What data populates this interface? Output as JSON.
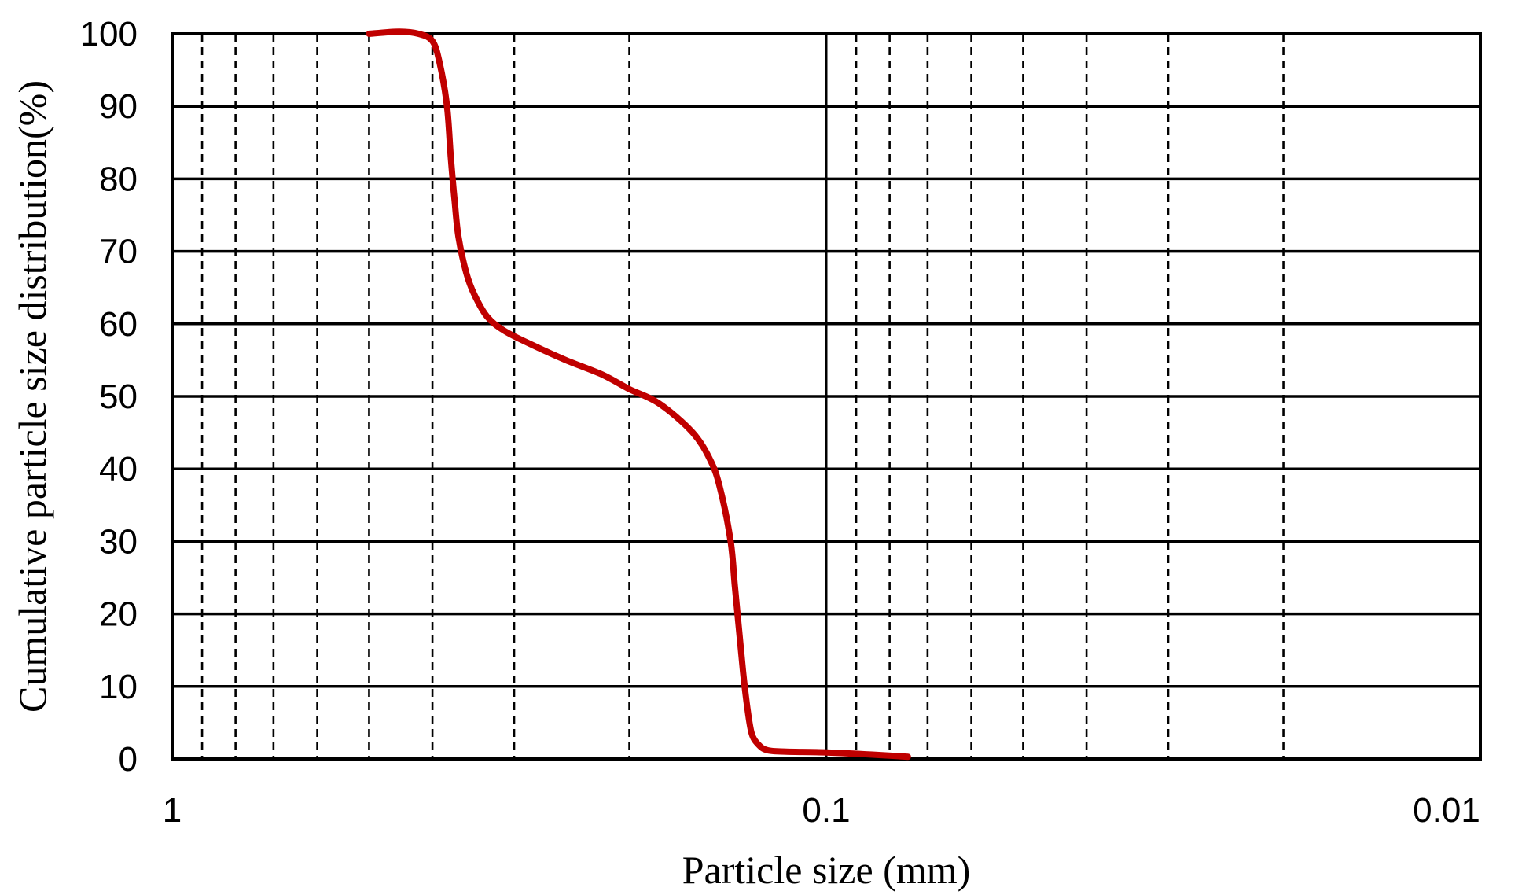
{
  "chart_data": {
    "type": "line",
    "xscale": "log",
    "xreversed": true,
    "xlim": [
      1,
      0.01
    ],
    "ylim": [
      0,
      100
    ],
    "xlabel": "Particle size (mm)",
    "ylabel": "Cumulative particle size distribution(%)",
    "x_tick_labels": [
      "1",
      "0.1",
      "0.01"
    ],
    "y_tick_labels": [
      "0",
      "10",
      "20",
      "30",
      "40",
      "50",
      "60",
      "70",
      "80",
      "90",
      "100"
    ],
    "grid": {
      "major_x": [
        1,
        0.1,
        0.01
      ],
      "minor_x_dashed": [
        0.9,
        0.8,
        0.7,
        0.6,
        0.5,
        0.4,
        0.3,
        0.2,
        0.09,
        0.08,
        0.07,
        0.06,
        0.05,
        0.04,
        0.03,
        0.02
      ],
      "y_lines": [
        10,
        20,
        30,
        40,
        50,
        60,
        70,
        80,
        90
      ]
    },
    "series": [
      {
        "color": "#c00000",
        "x": [
          0.5,
          0.45,
          0.42,
          0.4,
          0.39,
          0.38,
          0.375,
          0.37,
          0.365,
          0.355,
          0.345,
          0.33,
          0.31,
          0.28,
          0.25,
          0.22,
          0.2,
          0.18,
          0.16,
          0.15,
          0.145,
          0.14,
          0.138,
          0.136,
          0.134,
          0.132,
          0.13,
          0.127,
          0.123,
          0.115,
          0.1,
          0.085,
          0.075
        ],
        "y": [
          100,
          100.3,
          100,
          99,
          96,
          90,
          83,
          77,
          72,
          67,
          64,
          61,
          59,
          57,
          55,
          53,
          51,
          49,
          45,
          41,
          37,
          30,
          24,
          18,
          12,
          7,
          3.5,
          2,
          1.2,
          1,
          0.9,
          0.6,
          0.3
        ]
      }
    ]
  }
}
